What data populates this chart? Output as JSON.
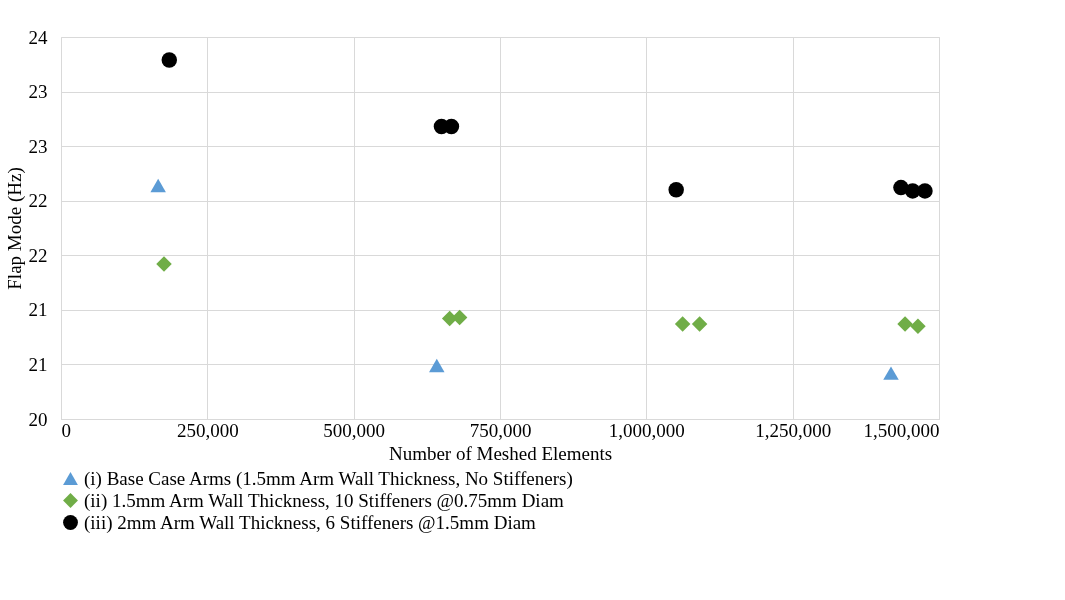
{
  "chart_data": {
    "type": "scatter",
    "xlabel": "Number of Meshed Elements",
    "ylabel": "Flap Mode (Hz)",
    "xlim": [
      0,
      1500000
    ],
    "xticks": [
      {
        "value": 0,
        "label": "0"
      },
      {
        "value": 250000,
        "label": "250,000"
      },
      {
        "value": 500000,
        "label": "500,000"
      },
      {
        "value": 750000,
        "label": "750,000"
      },
      {
        "value": 1000000,
        "label": "1,000,000"
      },
      {
        "value": 1250000,
        "label": "1,250,000"
      },
      {
        "value": 1500000,
        "label": "1,500,000"
      }
    ],
    "ylim": [
      20,
      23.5
    ],
    "yticks": [
      20,
      {
        "value": 20.5,
        "label": "21"
      },
      21,
      {
        "value": 21.5,
        "label": "22"
      },
      22,
      {
        "value": 22.5,
        "label": "23"
      },
      23,
      {
        "value": 23.5,
        "label": "24"
      }
    ],
    "grid": true,
    "legend": "bottom",
    "series": [
      {
        "name": "(i) Base Case Arms (1.5mm Arm Wall Thickness, No Stiffeners)",
        "color": "#5b9bd5",
        "marker": "triangle",
        "x": [
          166000,
          642000,
          1418000
        ],
        "values": [
          22.14,
          20.49,
          20.42
        ]
      },
      {
        "name": "(ii) 1.5mm Arm Wall Thickness, 10 Stiffeners @0.75mm Diam",
        "color": "#70ad47",
        "marker": "diamond",
        "x": [
          176000,
          664000,
          681000,
          1062000,
          1091000,
          1436000,
          1442000,
          1464000
        ],
        "values": [
          21.42,
          20.92,
          20.93,
          20.87,
          20.87,
          null,
          20.87,
          20.85
        ]
      },
      {
        "name": "(iii) 2mm Arm Wall Thickness, 6 Stiffeners @1.5mm Diam",
        "color": "#000000",
        "marker": "circle",
        "x": [
          185000,
          650000,
          667000,
          1051000,
          1428000,
          1435000,
          1455000,
          1476000
        ],
        "values": [
          23.29,
          22.68,
          22.68,
          22.1,
          null,
          22.12,
          22.09,
          22.09
        ]
      }
    ]
  }
}
